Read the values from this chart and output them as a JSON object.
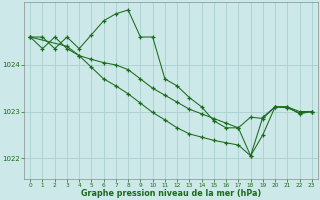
{
  "title": "Graphe pression niveau de la mer (hPa)",
  "bg_color": "#cce8e8",
  "grid_color": "#aad0d0",
  "line_color": "#1a6b1a",
  "xlim": [
    -0.5,
    23.5
  ],
  "ylim": [
    1021.55,
    1025.35
  ],
  "yticks": [
    1022,
    1023,
    1024
  ],
  "xticks": [
    0,
    1,
    2,
    3,
    4,
    5,
    6,
    7,
    8,
    9,
    10,
    11,
    12,
    13,
    14,
    15,
    16,
    17,
    18,
    19,
    20,
    21,
    22,
    23
  ],
  "line1_x": [
    0,
    1,
    2,
    3,
    4,
    5,
    6,
    7,
    8,
    9,
    10,
    11,
    12,
    13,
    14,
    15,
    16,
    17,
    18,
    19,
    20,
    21,
    22,
    23
  ],
  "line1_y": [
    1024.6,
    1024.6,
    1024.35,
    1024.6,
    1024.35,
    1024.65,
    1024.95,
    1025.1,
    1025.18,
    1024.6,
    1024.6,
    1023.7,
    1023.55,
    1023.3,
    1023.1,
    1022.8,
    1022.65,
    1022.65,
    1022.05,
    1022.5,
    1023.1,
    1023.1,
    1022.95,
    1023.0
  ],
  "line2_x": [
    0,
    1,
    2,
    3,
    4,
    5,
    6,
    7,
    8,
    9,
    10,
    11,
    12,
    13,
    14,
    15,
    16,
    17,
    18,
    19,
    20,
    21,
    22,
    23
  ],
  "line2_y": [
    1024.6,
    1024.35,
    1024.6,
    1024.35,
    1024.2,
    1024.12,
    1024.05,
    1024.0,
    1023.9,
    1023.7,
    1023.5,
    1023.35,
    1023.2,
    1023.05,
    1022.95,
    1022.85,
    1022.75,
    1022.65,
    1022.88,
    1022.85,
    1023.1,
    1023.1,
    1023.0,
    1023.0
  ],
  "line3_x": [
    0,
    3,
    4,
    5,
    6,
    7,
    8,
    9,
    10,
    11,
    12,
    13,
    14,
    15,
    16,
    17,
    18,
    19,
    20,
    21,
    22,
    23
  ],
  "line3_y": [
    1024.6,
    1024.4,
    1024.2,
    1023.95,
    1023.7,
    1023.55,
    1023.38,
    1023.18,
    1022.98,
    1022.82,
    1022.65,
    1022.52,
    1022.45,
    1022.38,
    1022.33,
    1022.28,
    1022.05,
    1022.88,
    1023.1,
    1023.08,
    1022.97,
    1023.0
  ]
}
